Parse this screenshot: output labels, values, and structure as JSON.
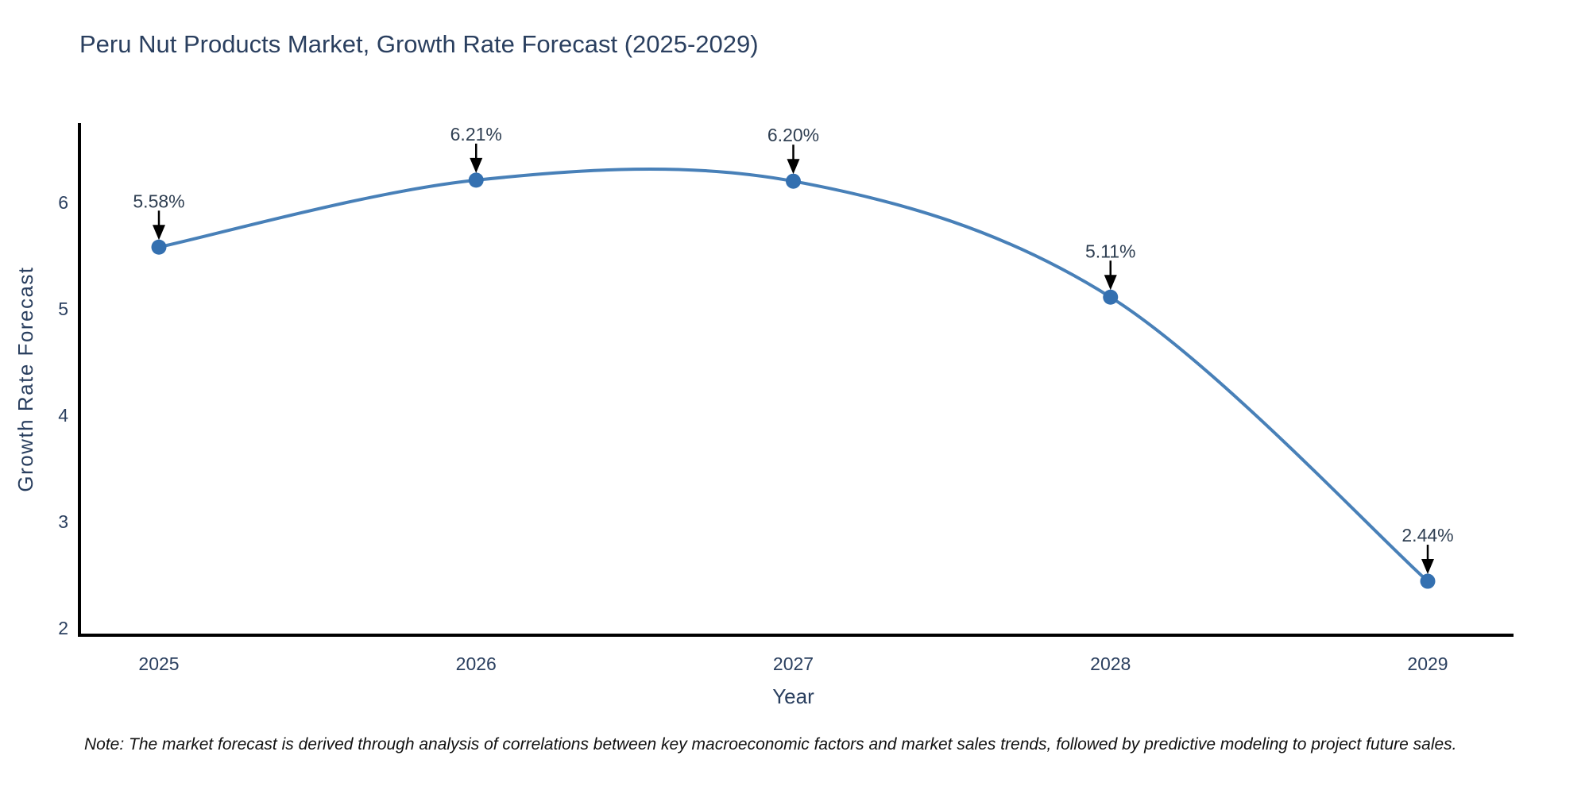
{
  "title": "Peru Nut Products Market, Growth Rate Forecast (2025-2029)",
  "note": "Note: The market forecast is derived through analysis of correlations between key macroeconomic factors and market sales trends, followed by predictive modeling to project future sales.",
  "chart_data": {
    "type": "line",
    "title": "Peru Nut Products Market, Growth Rate Forecast (2025-2029)",
    "xlabel": "Year",
    "ylabel": "Growth Rate Forecast",
    "categories": [
      "2025",
      "2026",
      "2027",
      "2028",
      "2029"
    ],
    "values": [
      5.58,
      6.21,
      6.2,
      5.11,
      2.44
    ],
    "point_labels": [
      "5.58%",
      "6.21%",
      "6.20%",
      "5.11%",
      "2.44%"
    ],
    "y_ticks": [
      2,
      3,
      4,
      5,
      6
    ],
    "ylim": [
      2,
      6.8
    ],
    "line_shape": "spline",
    "grid": false,
    "legend": "none",
    "annotation_style": "black-arrow-down-to-point",
    "colors": {
      "line": "#4880b8",
      "marker": "#3470b0",
      "axis": "#000000",
      "label_text": "#2a3f5f",
      "annotation_text": "#2f3f52",
      "arrow": "#000000",
      "background": "#ffffff"
    }
  }
}
